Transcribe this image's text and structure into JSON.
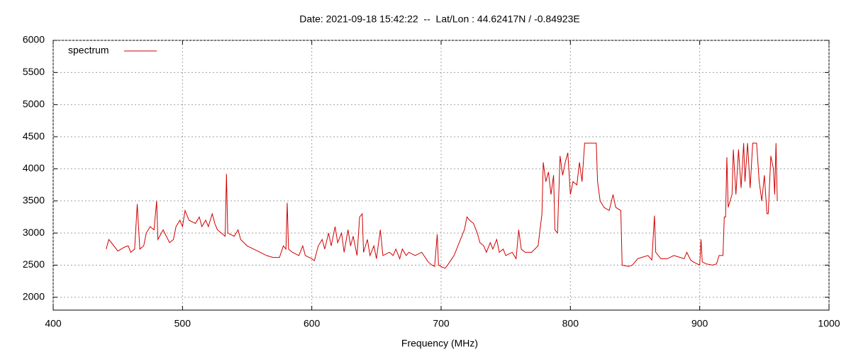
{
  "chart_data": {
    "type": "line",
    "title": "Date: 2021-09-18 15:42:22  --  Lat/Lon : 44.62417N / -0.84923E",
    "xlabel": "Frequency (MHz)",
    "xlim": [
      400,
      1000
    ],
    "xticks": [
      400,
      500,
      600,
      700,
      800,
      900,
      1000
    ],
    "ylim": [
      1800,
      6000
    ],
    "yticks": [
      2000,
      2500,
      3000,
      3500,
      4000,
      4500,
      5000,
      5500,
      6000
    ],
    "grid": true,
    "legend": "upper left",
    "x": [
      441,
      443,
      445,
      450,
      455,
      458,
      460,
      463,
      465,
      467,
      470,
      472,
      475,
      478,
      480,
      481,
      485,
      490,
      493,
      495,
      498,
      500,
      502,
      505,
      510,
      513,
      515,
      518,
      520,
      523,
      525,
      527,
      530,
      533,
      534,
      535,
      540,
      543,
      545,
      550,
      555,
      560,
      565,
      570,
      575,
      578,
      580,
      581,
      582,
      585,
      590,
      593,
      595,
      600,
      602,
      605,
      608,
      610,
      613,
      615,
      618,
      620,
      623,
      625,
      628,
      630,
      632,
      635,
      637,
      639,
      640,
      643,
      645,
      648,
      650,
      653,
      655,
      660,
      663,
      665,
      668,
      670,
      673,
      675,
      680,
      685,
      690,
      693,
      695,
      697,
      698,
      700,
      703,
      705,
      710,
      715,
      718,
      720,
      722,
      725,
      728,
      730,
      733,
      735,
      738,
      740,
      743,
      745,
      748,
      750,
      755,
      758,
      760,
      762,
      765,
      770,
      775,
      778,
      779,
      781,
      783,
      785,
      787,
      788,
      790,
      792,
      794,
      796,
      798,
      800,
      802,
      805,
      807,
      809,
      811,
      815,
      820,
      821,
      823,
      826,
      830,
      833,
      835,
      839,
      840,
      845,
      848,
      852,
      855,
      860,
      863,
      865,
      866,
      868,
      870,
      875,
      880,
      885,
      888,
      890,
      893,
      895,
      900,
      901,
      902,
      905,
      910,
      913,
      915,
      918,
      919,
      920,
      921,
      922,
      925,
      926,
      928,
      930,
      932,
      934,
      935,
      937,
      939,
      941,
      944,
      946,
      948,
      950,
      952,
      953,
      955,
      957,
      958,
      959,
      960
    ],
    "series": [
      {
        "name": "spectrum",
        "color": "#d00000",
        "values": [
          2750,
          2900,
          2850,
          2720,
          2780,
          2800,
          2700,
          2750,
          3450,
          2750,
          2800,
          3000,
          3100,
          3050,
          3500,
          2900,
          3050,
          2850,
          2900,
          3100,
          3200,
          3100,
          3350,
          3200,
          3150,
          3250,
          3100,
          3200,
          3100,
          3300,
          3150,
          3050,
          3000,
          2950,
          3920,
          3000,
          2950,
          3050,
          2900,
          2800,
          2750,
          2700,
          2650,
          2620,
          2620,
          2800,
          2750,
          3470,
          2750,
          2700,
          2650,
          2800,
          2650,
          2600,
          2570,
          2800,
          2900,
          2750,
          3000,
          2800,
          3100,
          2850,
          3000,
          2700,
          3050,
          2800,
          2950,
          2650,
          3250,
          3300,
          2700,
          2900,
          2650,
          2800,
          2600,
          3050,
          2650,
          2700,
          2650,
          2750,
          2600,
          2750,
          2650,
          2700,
          2650,
          2700,
          2550,
          2500,
          2480,
          2980,
          2500,
          2480,
          2450,
          2500,
          2650,
          2900,
          3050,
          3250,
          3200,
          3150,
          3000,
          2850,
          2800,
          2700,
          2850,
          2750,
          2900,
          2700,
          2750,
          2650,
          2700,
          2600,
          3050,
          2750,
          2700,
          2700,
          2800,
          3300,
          4100,
          3800,
          3950,
          3600,
          3900,
          3050,
          3000,
          4200,
          3900,
          4100,
          4250,
          3600,
          3800,
          3750,
          4100,
          3800,
          4400,
          4400,
          4400,
          3800,
          3500,
          3400,
          3350,
          3600,
          3400,
          3350,
          2500,
          2480,
          2500,
          2600,
          2620,
          2650,
          2580,
          3270,
          2700,
          2650,
          2600,
          2600,
          2650,
          2620,
          2600,
          2700,
          2580,
          2550,
          2500,
          2900,
          2550,
          2520,
          2500,
          2520,
          2650,
          2650,
          3250,
          3250,
          4180,
          3400,
          3600,
          4300,
          3600,
          4300,
          3700,
          4400,
          3800,
          4400,
          3700,
          4400,
          4400,
          3800,
          3500,
          3900,
          3300,
          3300,
          4200,
          4000,
          3600,
          4400,
          3500
        ]
      }
    ]
  }
}
